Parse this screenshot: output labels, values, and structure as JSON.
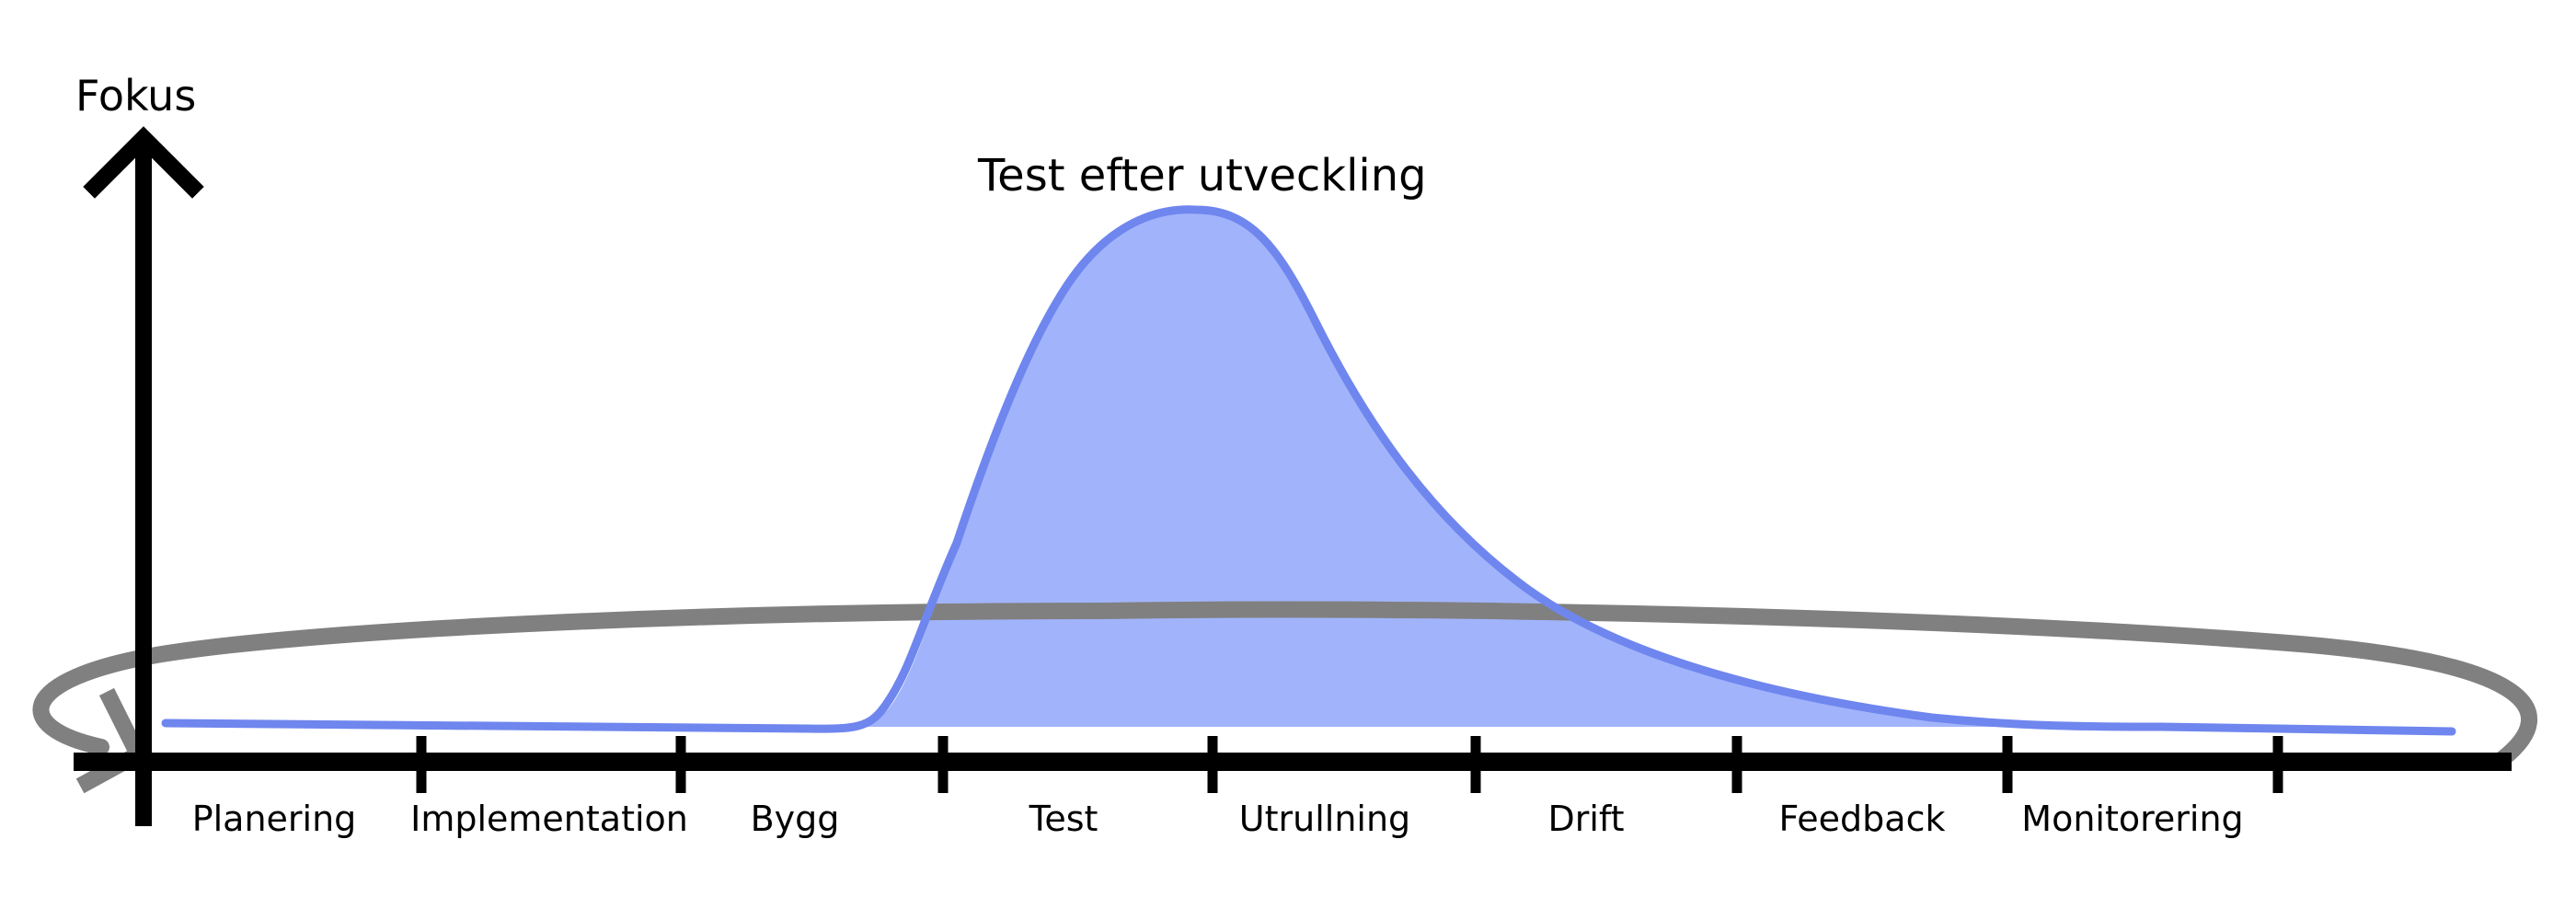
{
  "diagram": {
    "y_axis_label": "Fokus",
    "curve_label": "Test efter utveckling",
    "phases": [
      "Planering",
      "Implementation",
      "Bygg",
      "Test",
      "Utrullning",
      "Drift",
      "Feedback",
      "Monitorering"
    ],
    "colors": {
      "axis": "#000000",
      "loop": "#808080",
      "curve_stroke": "#6f86ee",
      "curve_fill": "#a1b4fb",
      "curve_label": "#6f86ee",
      "text": "#000000"
    }
  }
}
